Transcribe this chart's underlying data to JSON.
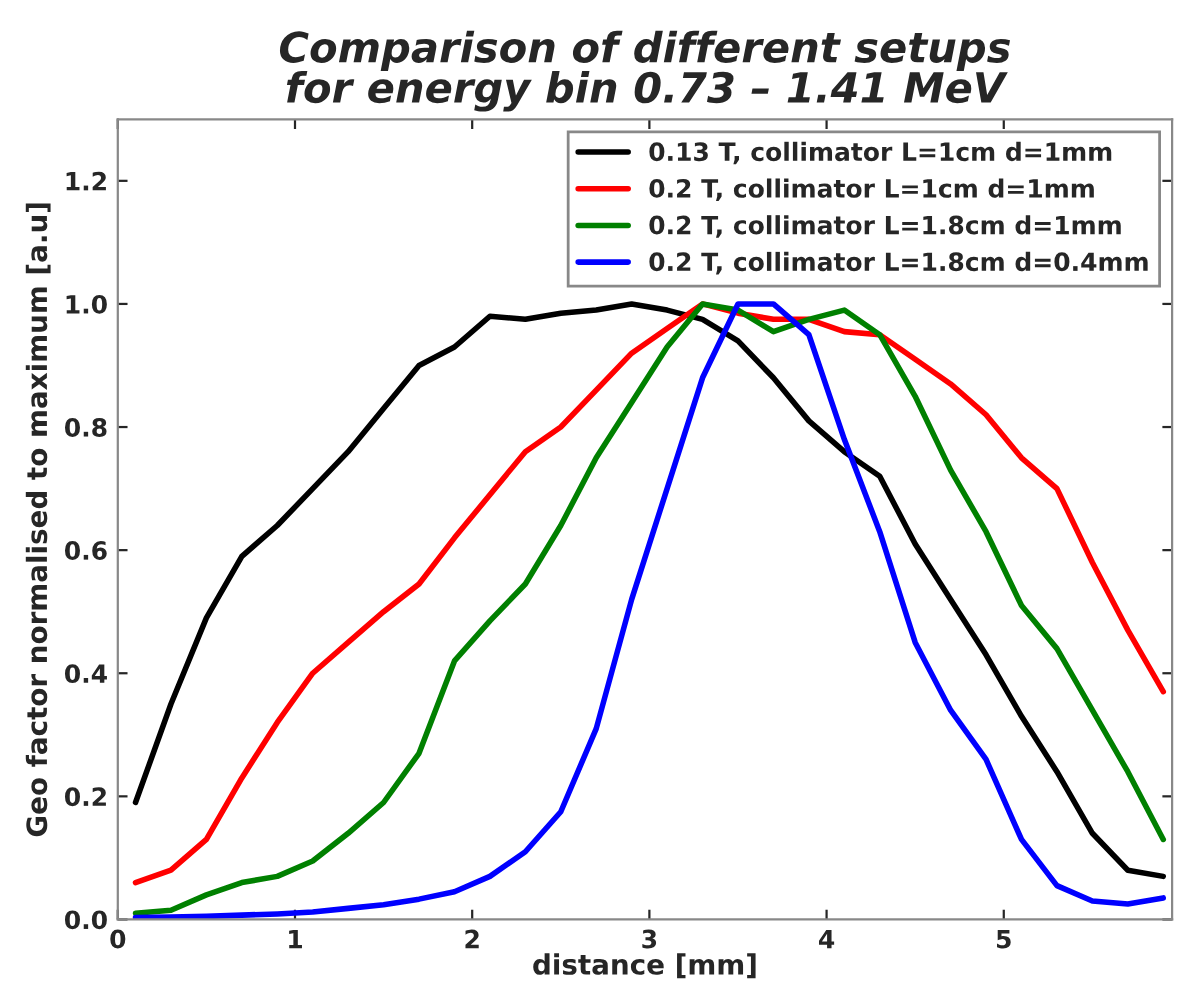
{
  "chart_data": {
    "type": "line",
    "title": "Comparison of different setups\nfor energy bin 0.73 – 1.41 MeV",
    "xlabel": "distance [mm]",
    "ylabel": "Geo factor normalised to maximum [a.u]",
    "x": [
      0.1,
      0.3,
      0.5,
      0.7,
      0.9,
      1.1,
      1.3,
      1.5,
      1.7,
      1.9,
      2.1,
      2.3,
      2.5,
      2.7,
      2.9,
      3.1,
      3.3,
      3.5,
      3.7,
      3.9,
      4.1,
      4.3,
      4.5,
      4.7,
      4.9,
      5.1,
      5.3,
      5.5,
      5.7,
      5.9
    ],
    "series": [
      {
        "name": "0.13 T, collimator L=1cm d=1mm",
        "color": "#000000",
        "values": [
          0.19,
          0.35,
          0.49,
          0.59,
          0.64,
          0.7,
          0.76,
          0.83,
          0.9,
          0.93,
          0.98,
          0.975,
          0.985,
          0.99,
          1.0,
          0.99,
          0.975,
          0.94,
          0.88,
          0.81,
          0.76,
          0.72,
          0.61,
          0.52,
          0.43,
          0.33,
          0.24,
          0.14,
          0.08,
          0.07
        ]
      },
      {
        "name": "0.2 T, collimator L=1cm d=1mm",
        "color": "#ff0000",
        "values": [
          0.06,
          0.08,
          0.13,
          0.23,
          0.32,
          0.4,
          0.45,
          0.5,
          0.545,
          0.62,
          0.69,
          0.76,
          0.8,
          0.86,
          0.92,
          0.96,
          1.0,
          0.985,
          0.975,
          0.975,
          0.955,
          0.95,
          0.91,
          0.87,
          0.82,
          0.75,
          0.7,
          0.58,
          0.47,
          0.37
        ]
      },
      {
        "name": "0.2 T, collimator L=1.8cm d=1mm",
        "color": "#008000",
        "values": [
          0.01,
          0.015,
          0.04,
          0.06,
          0.07,
          0.095,
          0.14,
          0.19,
          0.27,
          0.42,
          0.485,
          0.545,
          0.64,
          0.75,
          0.84,
          0.93,
          1.0,
          0.99,
          0.955,
          0.975,
          0.99,
          0.95,
          0.85,
          0.73,
          0.63,
          0.51,
          0.44,
          0.34,
          0.24,
          0.13
        ]
      },
      {
        "name": "0.2 T, collimator L=1.8cm d=0.4mm",
        "color": "#0000ff",
        "values": [
          0.003,
          0.004,
          0.005,
          0.007,
          0.009,
          0.012,
          0.018,
          0.024,
          0.033,
          0.045,
          0.07,
          0.11,
          0.175,
          0.31,
          0.52,
          0.7,
          0.88,
          1.0,
          1.0,
          0.95,
          0.78,
          0.63,
          0.45,
          0.34,
          0.26,
          0.13,
          0.055,
          0.03,
          0.025,
          0.035
        ]
      }
    ],
    "xlim": [
      0,
      5.95
    ],
    "ylim": [
      0,
      1.3
    ],
    "xticks": [
      0,
      1,
      2,
      3,
      4,
      5
    ],
    "yticks": [
      {
        "value": 0,
        "label": "0.0"
      },
      0.2,
      0.4,
      0.6,
      0.8,
      {
        "value": 1,
        "label": "1.0"
      },
      1.2
    ],
    "grid": false,
    "legend": "top right",
    "line_style": "solid",
    "marker": "none"
  }
}
